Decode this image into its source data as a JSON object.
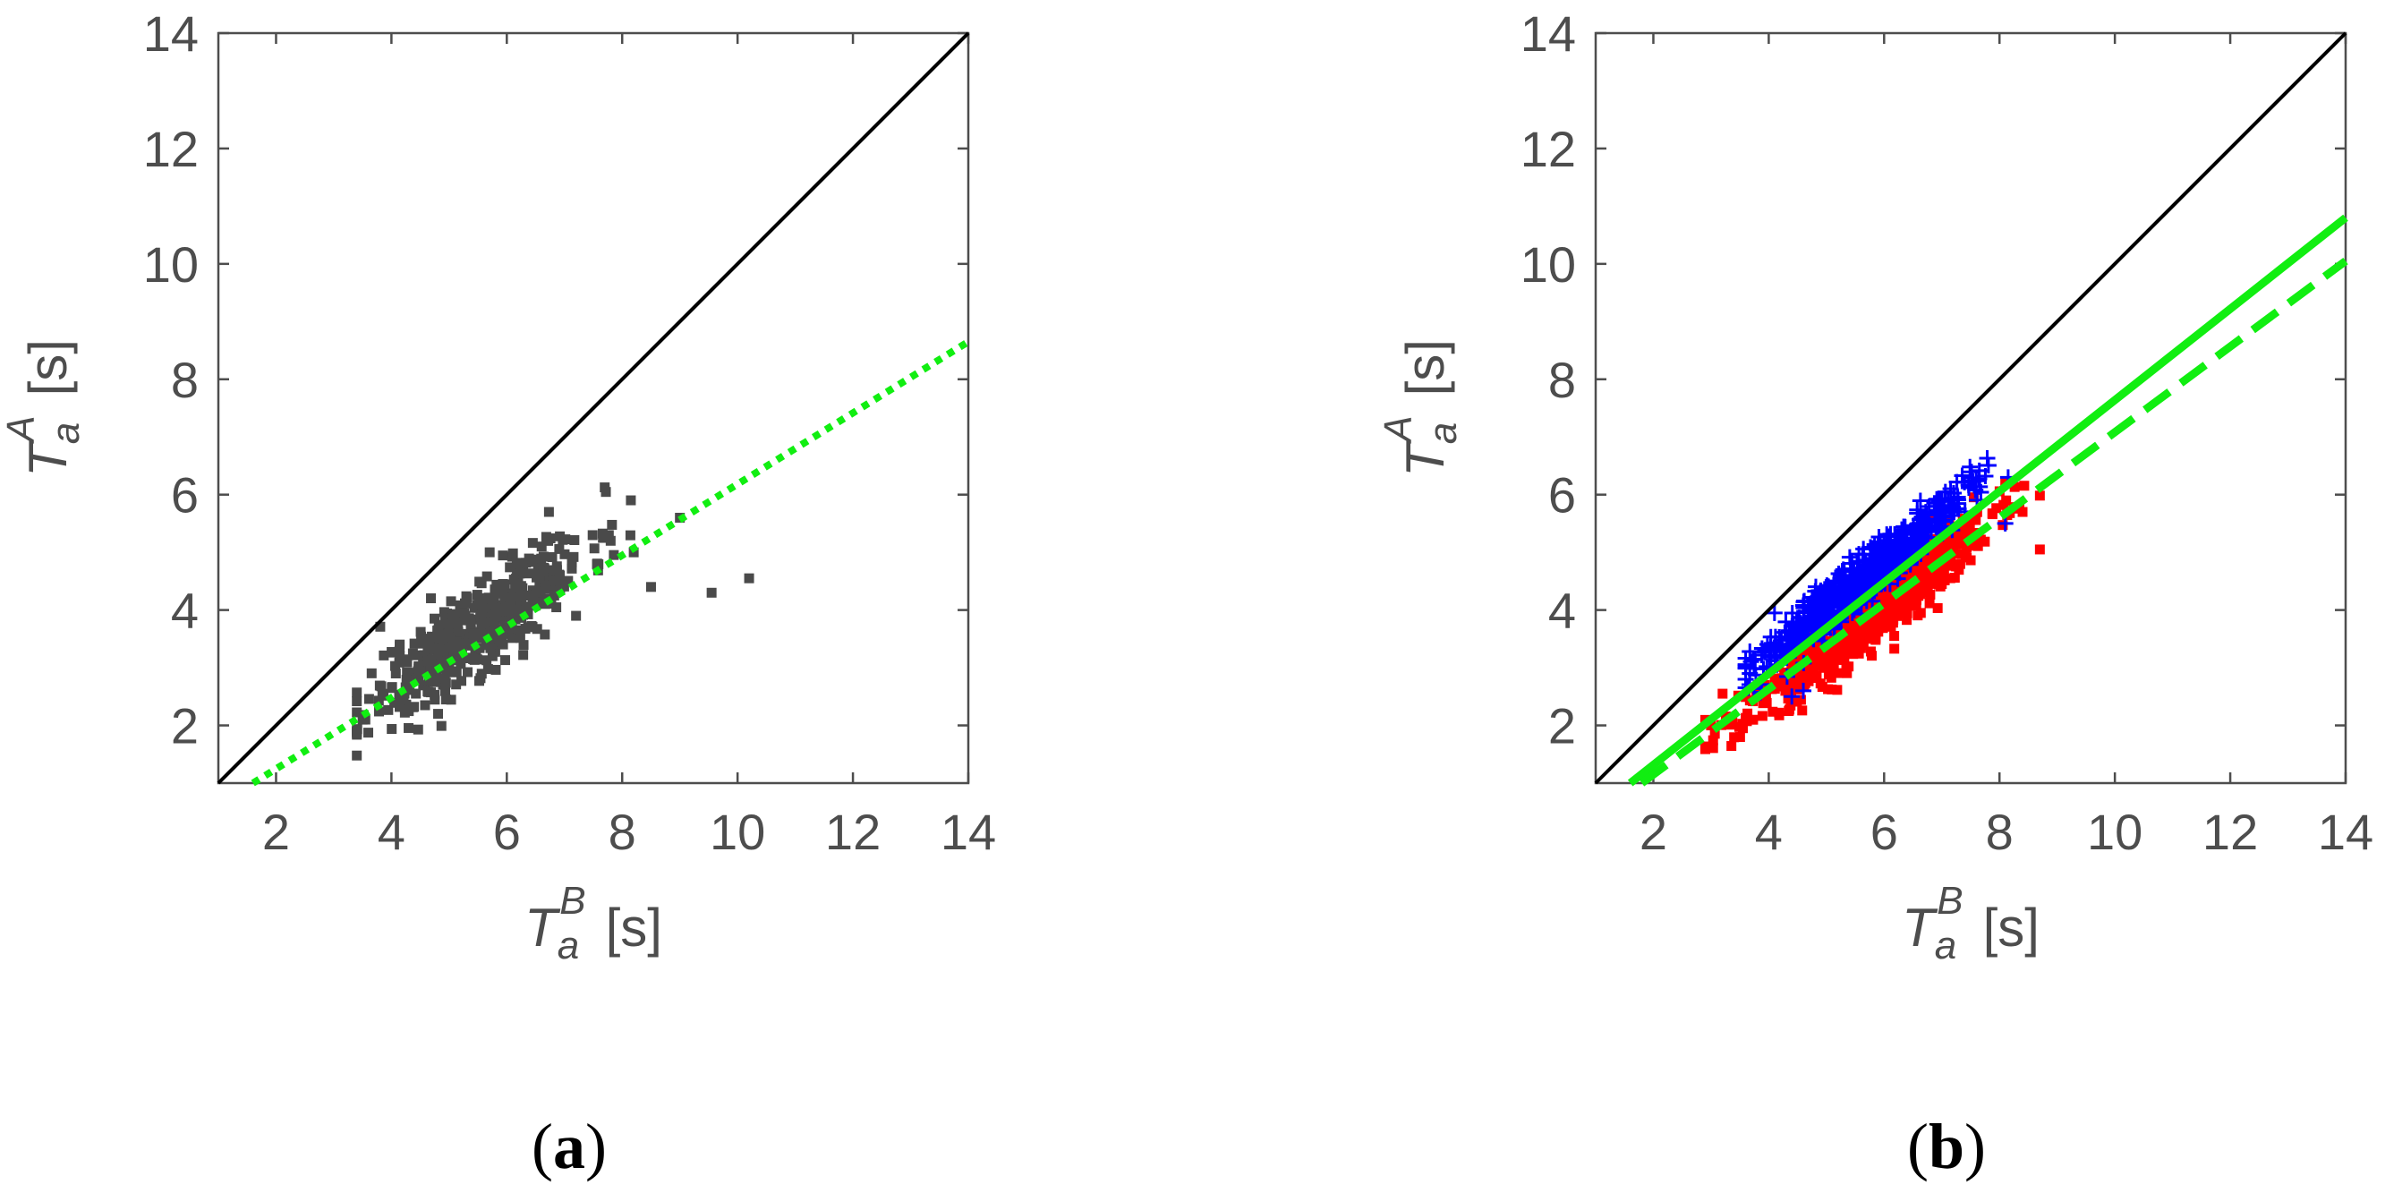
{
  "colors": {
    "axis": "#4d4d4d",
    "identity": "#000000",
    "fit": "#11ee11",
    "gray_points": "#4a4a4a",
    "red_points": "#ff0000",
    "blue_points": "#0000ff"
  },
  "chart_data": [
    {
      "type": "scatter",
      "panel_label": {
        "open": "(",
        "letter": "a",
        "close": ")"
      },
      "xlabel": {
        "base": "T",
        "sub": "a",
        "sup": "B",
        "unit": "[s]"
      },
      "ylabel": {
        "base": "T",
        "sub": "a",
        "sup": "A",
        "unit": "[s]"
      },
      "xlim": [
        1,
        14
      ],
      "ylim": [
        1,
        14
      ],
      "xticks": [
        "2",
        "4",
        "6",
        "8",
        "10",
        "12",
        "14"
      ],
      "yticks": [
        "2",
        "4",
        "6",
        "8",
        "10",
        "12",
        "14"
      ],
      "grid": false,
      "lines": [
        {
          "style": "solid",
          "color": "#000000",
          "x": [
            1,
            14
          ],
          "y": [
            1,
            14
          ]
        },
        {
          "style": "dotted",
          "color": "#11ee11",
          "x": [
            1.6,
            14
          ],
          "y": [
            1.0,
            8.65
          ]
        }
      ],
      "scatter": [
        {
          "marker": "square",
          "color": "#4a4a4a",
          "n": 480,
          "seed": 11,
          "x_mean": 5.5,
          "x_sd": 0.95,
          "slope": 0.72,
          "intercept": -0.25,
          "noise": 0.42,
          "xmin": 3.4,
          "xmax": 8.3,
          "outliers": [
            [
              9.0,
              5.6
            ],
            [
              9.55,
              4.3
            ],
            [
              10.2,
              4.55
            ],
            [
              8.5,
              4.4
            ],
            [
              7.8,
              5.2
            ],
            [
              3.5,
              2.1
            ],
            [
              8.2,
              5.0
            ],
            [
              7.2,
              3.9
            ]
          ]
        }
      ]
    },
    {
      "type": "scatter",
      "panel_label": {
        "open": "(",
        "letter": "b",
        "close": ")"
      },
      "xlabel": {
        "base": "T",
        "sub": "a",
        "sup": "B",
        "unit": "[s]"
      },
      "ylabel": {
        "base": "T",
        "sub": "a",
        "sup": "A",
        "unit": "[s]"
      },
      "xlim": [
        1,
        14
      ],
      "ylim": [
        1,
        14
      ],
      "xticks": [
        "2",
        "4",
        "6",
        "8",
        "10",
        "12",
        "14"
      ],
      "yticks": [
        "2",
        "4",
        "6",
        "8",
        "10",
        "12",
        "14"
      ],
      "grid": false,
      "lines": [
        {
          "style": "solid",
          "color": "#000000",
          "x": [
            1,
            14
          ],
          "y": [
            1,
            14
          ]
        },
        {
          "style": "solid",
          "color": "#11ee11",
          "x": [
            1.6,
            14
          ],
          "y": [
            1.0,
            10.8
          ]
        },
        {
          "style": "dashed",
          "color": "#11ee11",
          "x": [
            1.8,
            14
          ],
          "y": [
            1.0,
            10.05
          ]
        }
      ],
      "scatter": [
        {
          "marker": "square",
          "color": "#ff0000",
          "n": 700,
          "seed": 23,
          "x_mean": 5.7,
          "x_sd": 1.05,
          "slope": 0.78,
          "intercept": -0.6,
          "noise": 0.28,
          "xmin": 2.9,
          "xmax": 8.7,
          "outliers": [
            [
              8.7,
              5.05
            ],
            [
              8.4,
              5.7
            ],
            [
              3.0,
              2.0
            ],
            [
              3.2,
              2.55
            ],
            [
              8.1,
              6.2
            ]
          ]
        },
        {
          "marker": "plus",
          "color": "#0000ff",
          "n": 650,
          "seed": 37,
          "x_mean": 5.6,
          "x_sd": 0.9,
          "slope": 0.82,
          "intercept": -0.05,
          "noise": 0.22,
          "xmin": 3.6,
          "xmax": 8.2,
          "outliers": [
            [
              4.1,
              3.95
            ],
            [
              4.6,
              2.6
            ],
            [
              8.15,
              6.3
            ],
            [
              8.1,
              5.5
            ],
            [
              4.4,
              2.5
            ]
          ]
        }
      ]
    }
  ]
}
